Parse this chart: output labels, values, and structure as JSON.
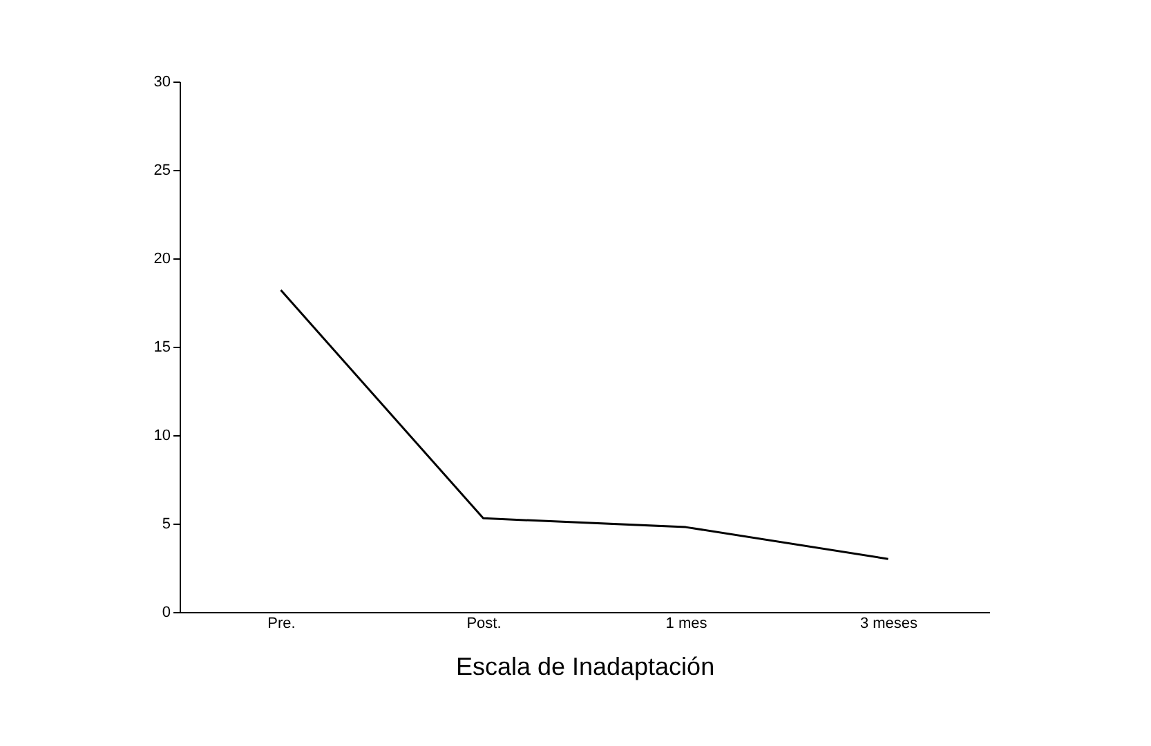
{
  "chart_data": {
    "type": "line",
    "xlabel": "Escala de Inadaptación",
    "categories": [
      "Pre.",
      "Post.",
      "1 mes",
      "3 meses"
    ],
    "series": [
      {
        "color": "#000000",
        "values": [
          18.2,
          5.3,
          4.8,
          3.0
        ]
      }
    ],
    "ylim": [
      0,
      30
    ],
    "yticks": [
      0,
      5,
      10,
      15,
      20,
      25,
      30
    ],
    "grid": false,
    "legend": false,
    "marker": "none",
    "line_style": "solid"
  }
}
